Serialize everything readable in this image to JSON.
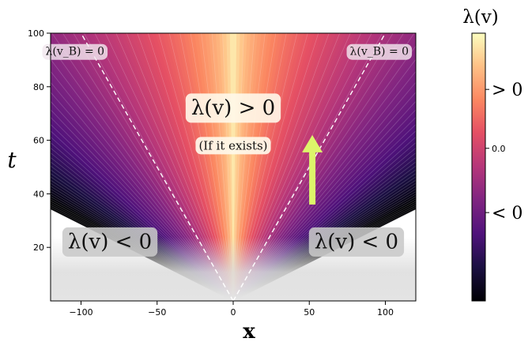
{
  "chart_data": {
    "type": "heatmap",
    "title": "",
    "xlabel": "x",
    "ylabel": "t",
    "xlim": [
      -120,
      120
    ],
    "ylim": [
      0,
      100
    ],
    "xticks": [
      -100,
      -50,
      0,
      50,
      100
    ],
    "yticks": [
      20,
      40,
      60,
      80,
      100
    ],
    "xtick_labels": [
      "−100",
      "−50",
      "0",
      "50",
      "100"
    ],
    "ytick_labels": [
      "20",
      "40",
      "60",
      "80",
      "100"
    ],
    "grid": false,
    "colormap": "magma",
    "colorbar": {
      "label": "λ(v)",
      "tick_labels": [
        {
          "text": "> 0",
          "level": 0.79
        },
        {
          "text": "0.0",
          "level": 0.57
        },
        {
          "text": "< 0",
          "level": 0.33
        }
      ]
    },
    "dashed_lines": [
      {
        "from": [
          0,
          0
        ],
        "to": [
          -100,
          100
        ]
      },
      {
        "from": [
          0,
          0
        ],
        "to": [
          100,
          100
        ]
      }
    ],
    "arrow": {
      "x": 52,
      "t_from": 36,
      "t_to": 62,
      "color": "#ddf56a"
    },
    "annotations": [
      {
        "text": "λ(v_B) = 0",
        "x": -104,
        "t": 93
      },
      {
        "text": "λ(v_B) = 0",
        "x": 96,
        "t": 93
      },
      {
        "text": "λ(v) > 0",
        "x": 0,
        "t": 72
      },
      {
        "text": "(If it exists)",
        "x": 0,
        "t": 58
      },
      {
        "text": "λ(v) < 0",
        "x": -81,
        "t": 22
      },
      {
        "text": "λ(v) < 0",
        "x": 81,
        "t": 22
      }
    ]
  }
}
